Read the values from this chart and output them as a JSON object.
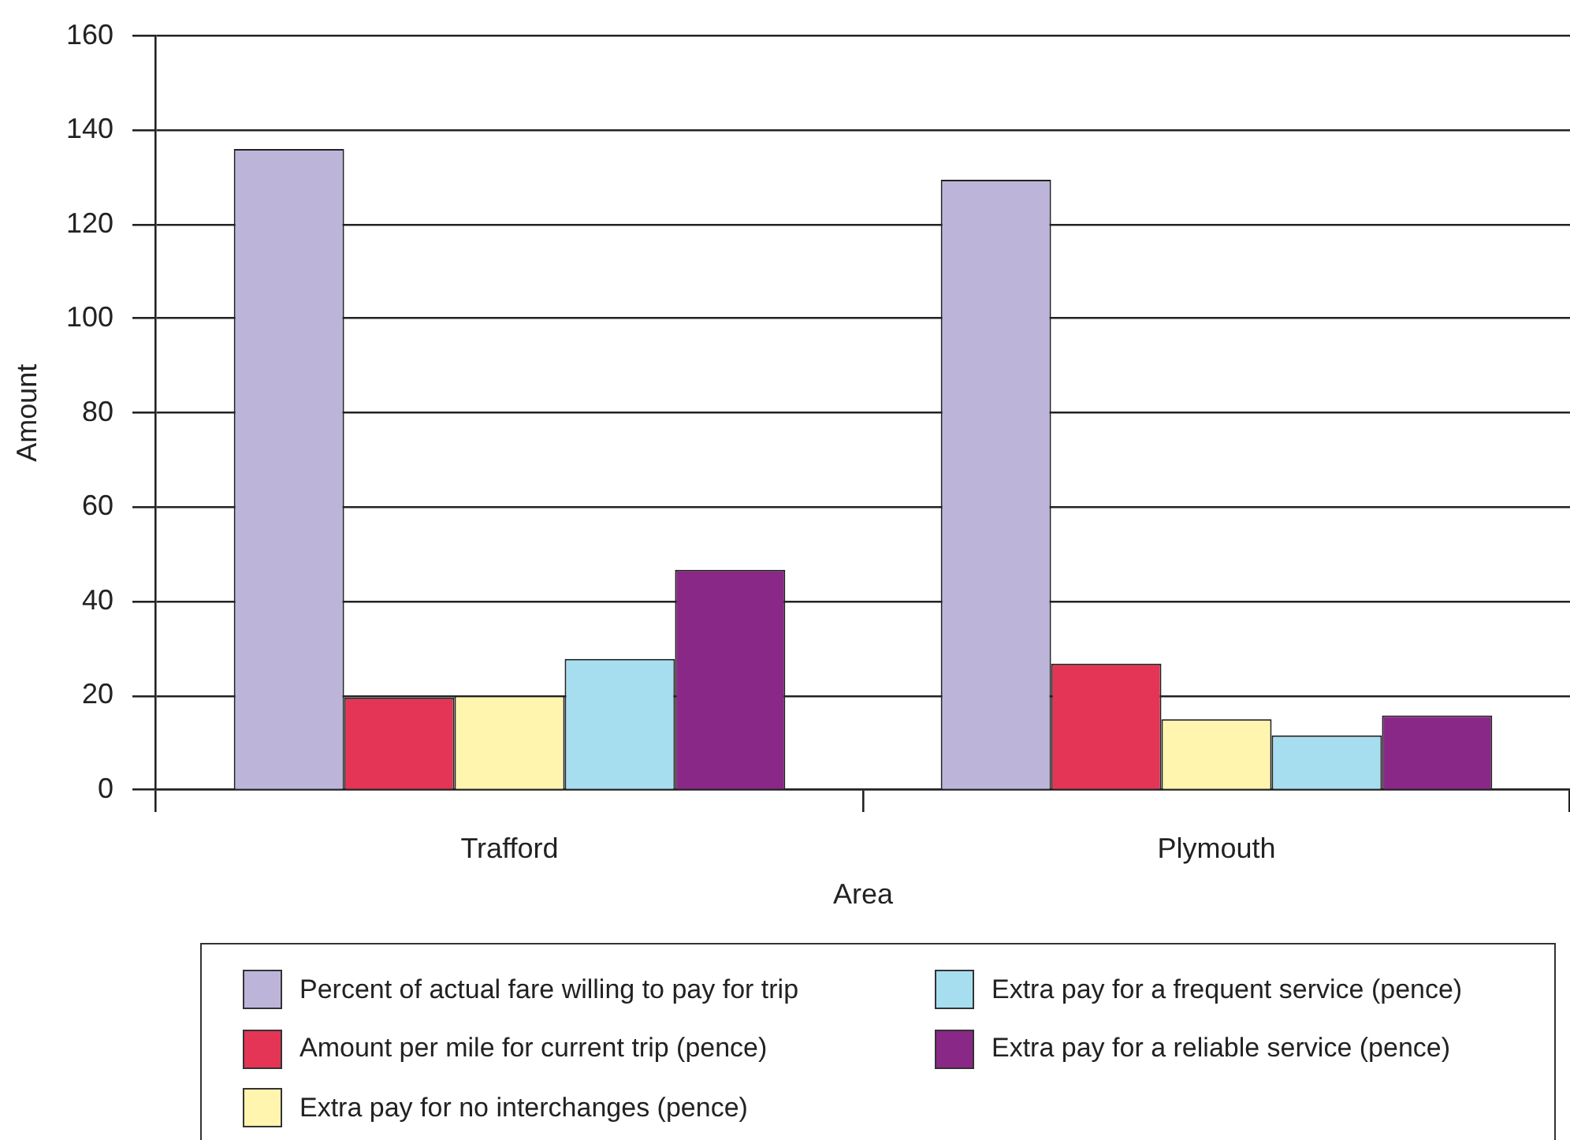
{
  "chart_data": {
    "type": "bar",
    "xlabel": "Area",
    "ylabel": "Amount",
    "categories": [
      "Trafford",
      "Plymouth"
    ],
    "series": [
      {
        "name": "Percent of actual fare willing to pay for trip",
        "color": "#bdb5d9",
        "values": [
          136,
          129.5
        ]
      },
      {
        "name": "Amount per mile for current trip (pence)",
        "color": "#e43556",
        "values": [
          19.6,
          26.8
        ]
      },
      {
        "name": "Extra pay for no interchanges (pence)",
        "color": "#fff5ae",
        "values": [
          20,
          15
        ]
      },
      {
        "name": "Extra pay for a frequent service (pence)",
        "color": "#a6def0",
        "values": [
          27.8,
          11.6
        ]
      },
      {
        "name": "Extra pay for a reliable service (pence)",
        "color": "#8a2887",
        "values": [
          46.7,
          15.8
        ]
      }
    ],
    "ylim": [
      0,
      160
    ],
    "yticks": [
      0,
      20,
      40,
      60,
      80,
      100,
      120,
      140,
      160
    ],
    "grid": "y",
    "legend": "bottom"
  }
}
